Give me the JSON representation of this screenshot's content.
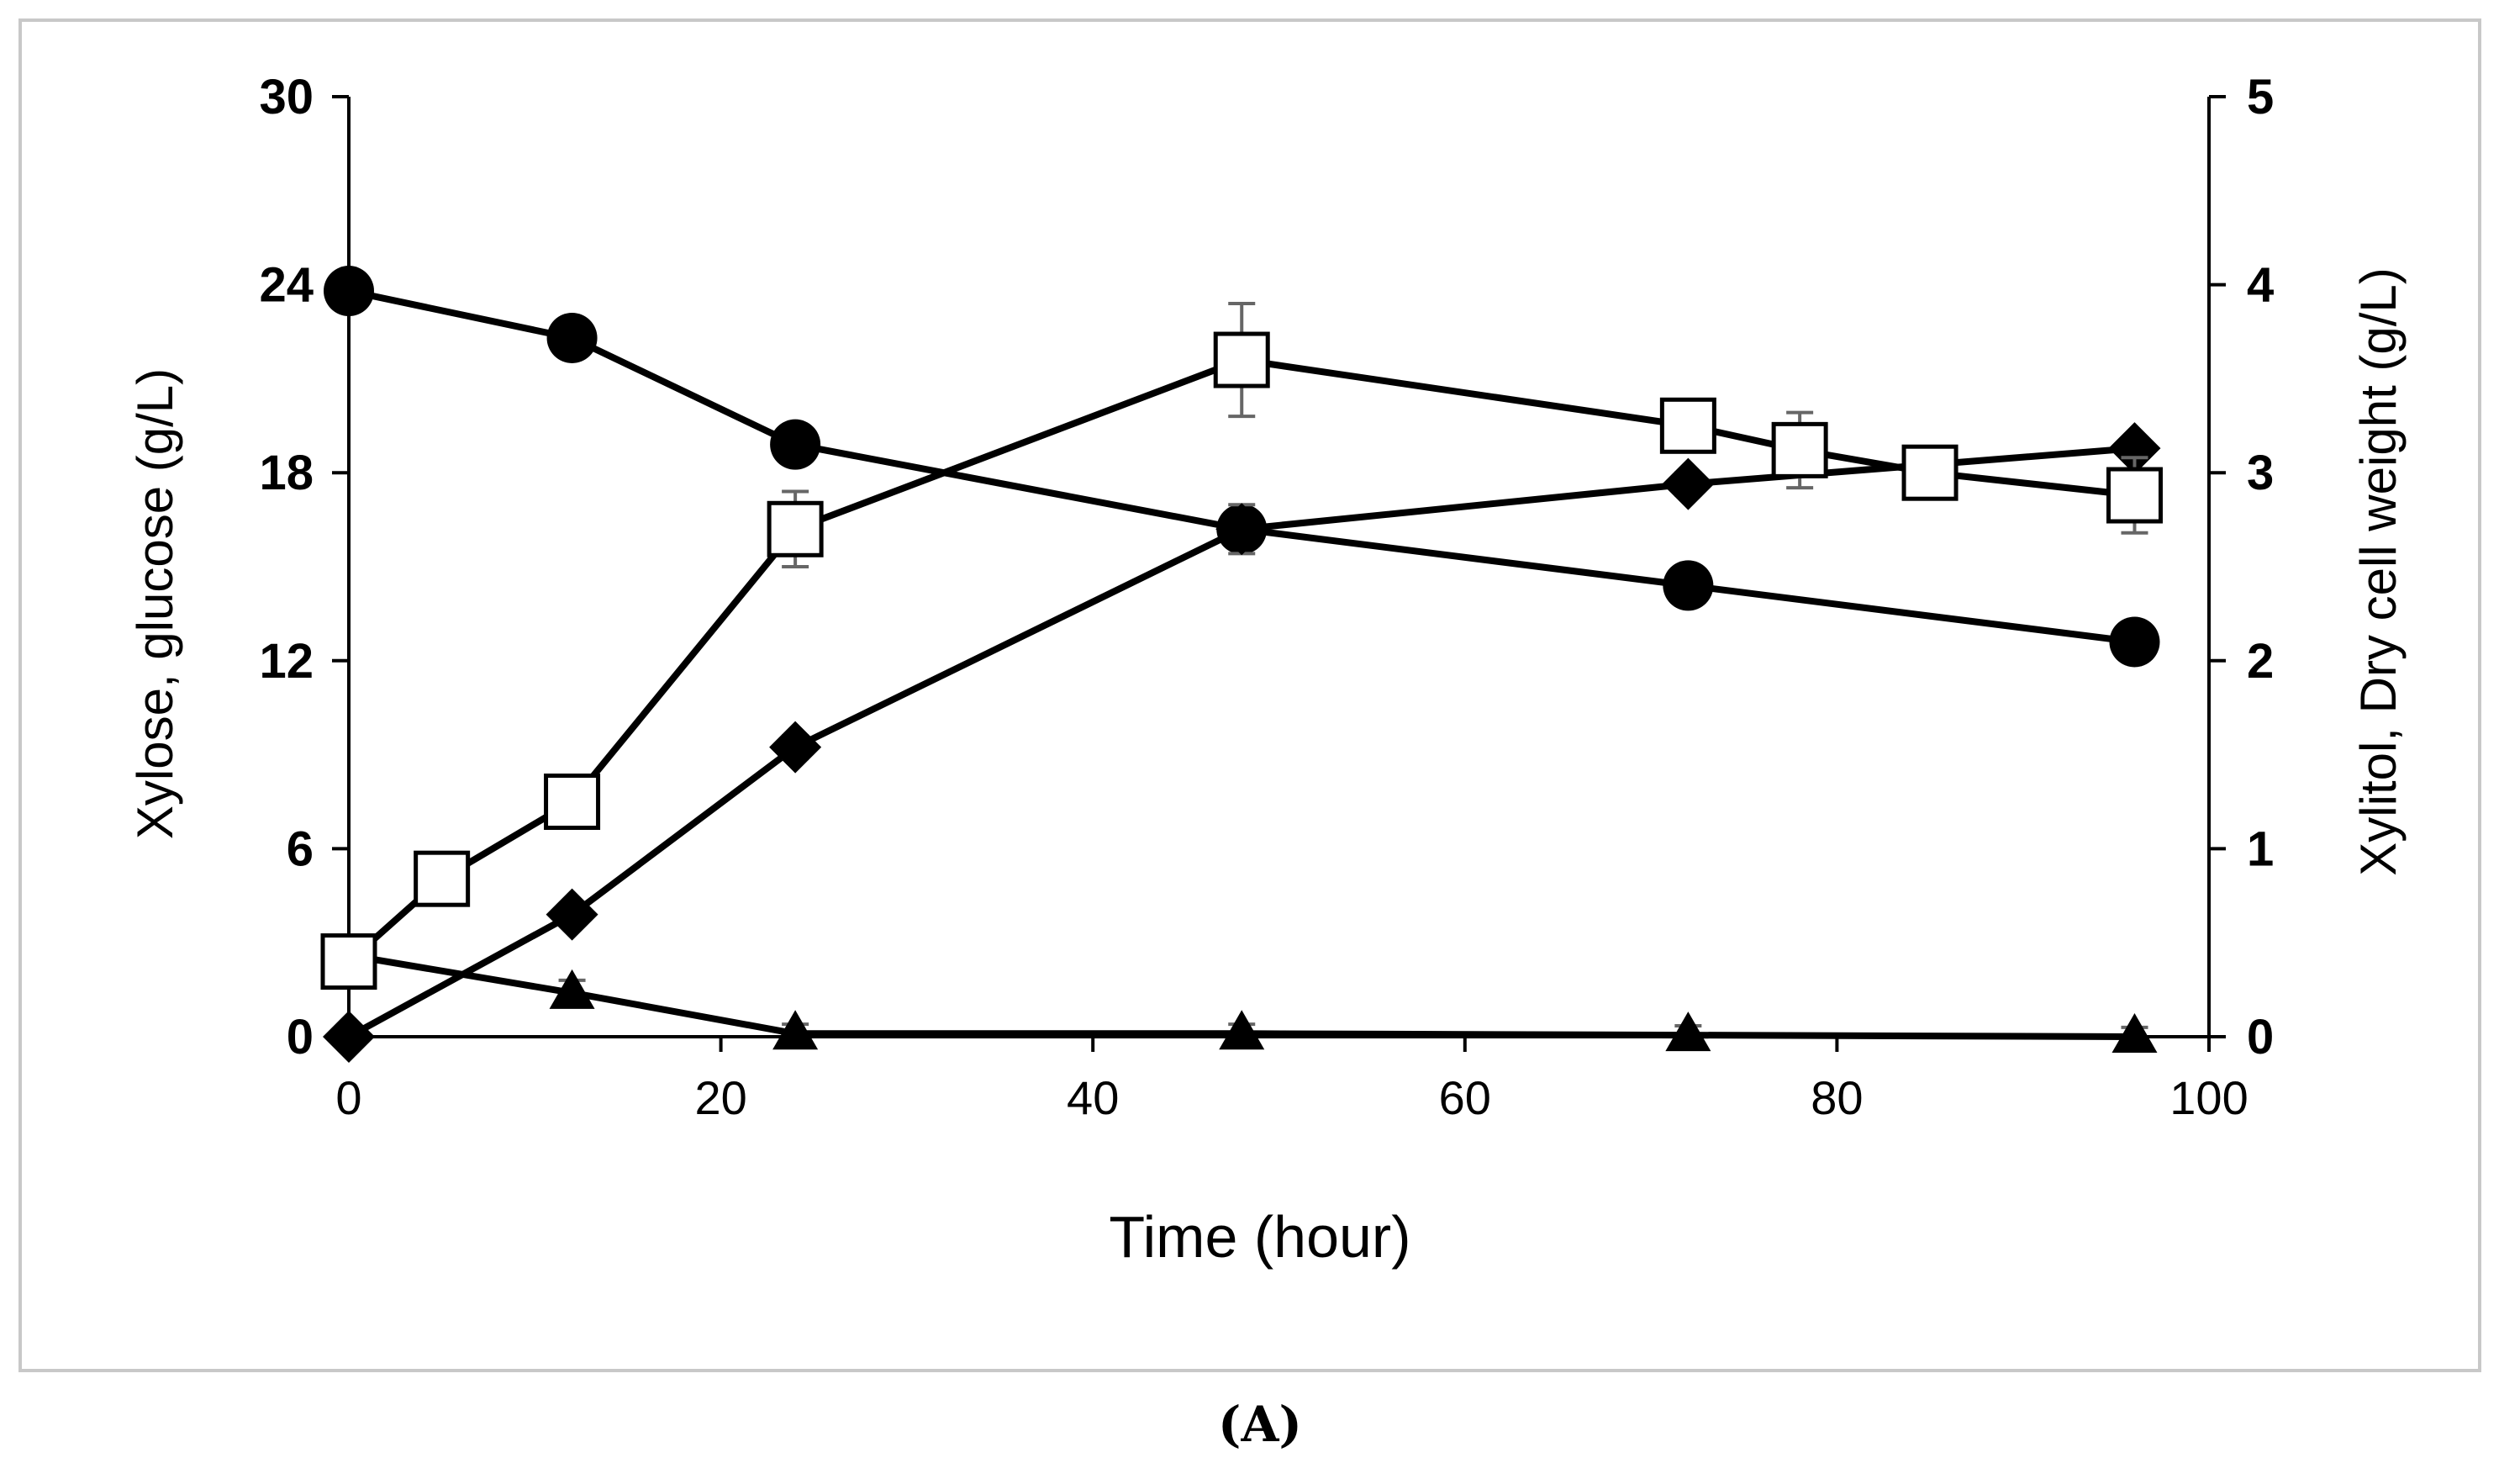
{
  "chart_data": {
    "type": "line",
    "title": "",
    "xlabel": "Time (hour)",
    "ylabel_left": "Xylose, glucose (g/L)",
    "ylabel_right": "Xylitol, Dry cell weight (g/L)",
    "xlim": [
      0,
      100
    ],
    "ylim_left": [
      0,
      30
    ],
    "ylim_right": [
      0,
      5
    ],
    "x_ticks": [
      0,
      20,
      40,
      60,
      80,
      100
    ],
    "y_left_ticks": [
      0,
      6,
      12,
      18,
      24,
      30
    ],
    "y_right_ticks": [
      0,
      1,
      2,
      3,
      4,
      5
    ],
    "grid": false,
    "legend": "none",
    "series": [
      {
        "name": "Xylose",
        "marker": "circle",
        "axis": "left",
        "x": [
          0,
          12,
          24,
          48,
          72,
          96
        ],
        "values": [
          23.8,
          22.3,
          18.9,
          16.2,
          14.4,
          12.6
        ],
        "errors": [
          0,
          0,
          0,
          0,
          0,
          0
        ]
      },
      {
        "name": "Glucose",
        "marker": "triangle",
        "axis": "left",
        "x": [
          0,
          12,
          24,
          48,
          72,
          96
        ],
        "values": [
          2.6,
          1.4,
          0.1,
          0.1,
          0.05,
          0.0
        ],
        "errors": [
          0,
          0.4,
          0.3,
          0.3,
          0.3,
          0.3
        ]
      },
      {
        "name": "Xylitol",
        "marker": "diamond",
        "axis": "right",
        "x": [
          0,
          12,
          24,
          48,
          72,
          96
        ],
        "values": [
          0,
          0.65,
          1.54,
          2.7,
          2.94,
          3.13
        ],
        "errors": [
          0,
          0.05,
          0.06,
          0.13,
          0.06,
          0.05
        ]
      },
      {
        "name": "Dry cell weight",
        "marker": "square",
        "axis": "right",
        "x": [
          0,
          5,
          12,
          24,
          48,
          72,
          78,
          85,
          96
        ],
        "values": [
          0.4,
          0.84,
          1.25,
          2.7,
          3.6,
          3.25,
          3.12,
          3.0,
          2.88
        ],
        "errors": [
          0,
          0,
          0,
          0.2,
          0.3,
          0,
          0.2,
          0,
          0.2
        ]
      }
    ],
    "panel_label": "(A)"
  }
}
